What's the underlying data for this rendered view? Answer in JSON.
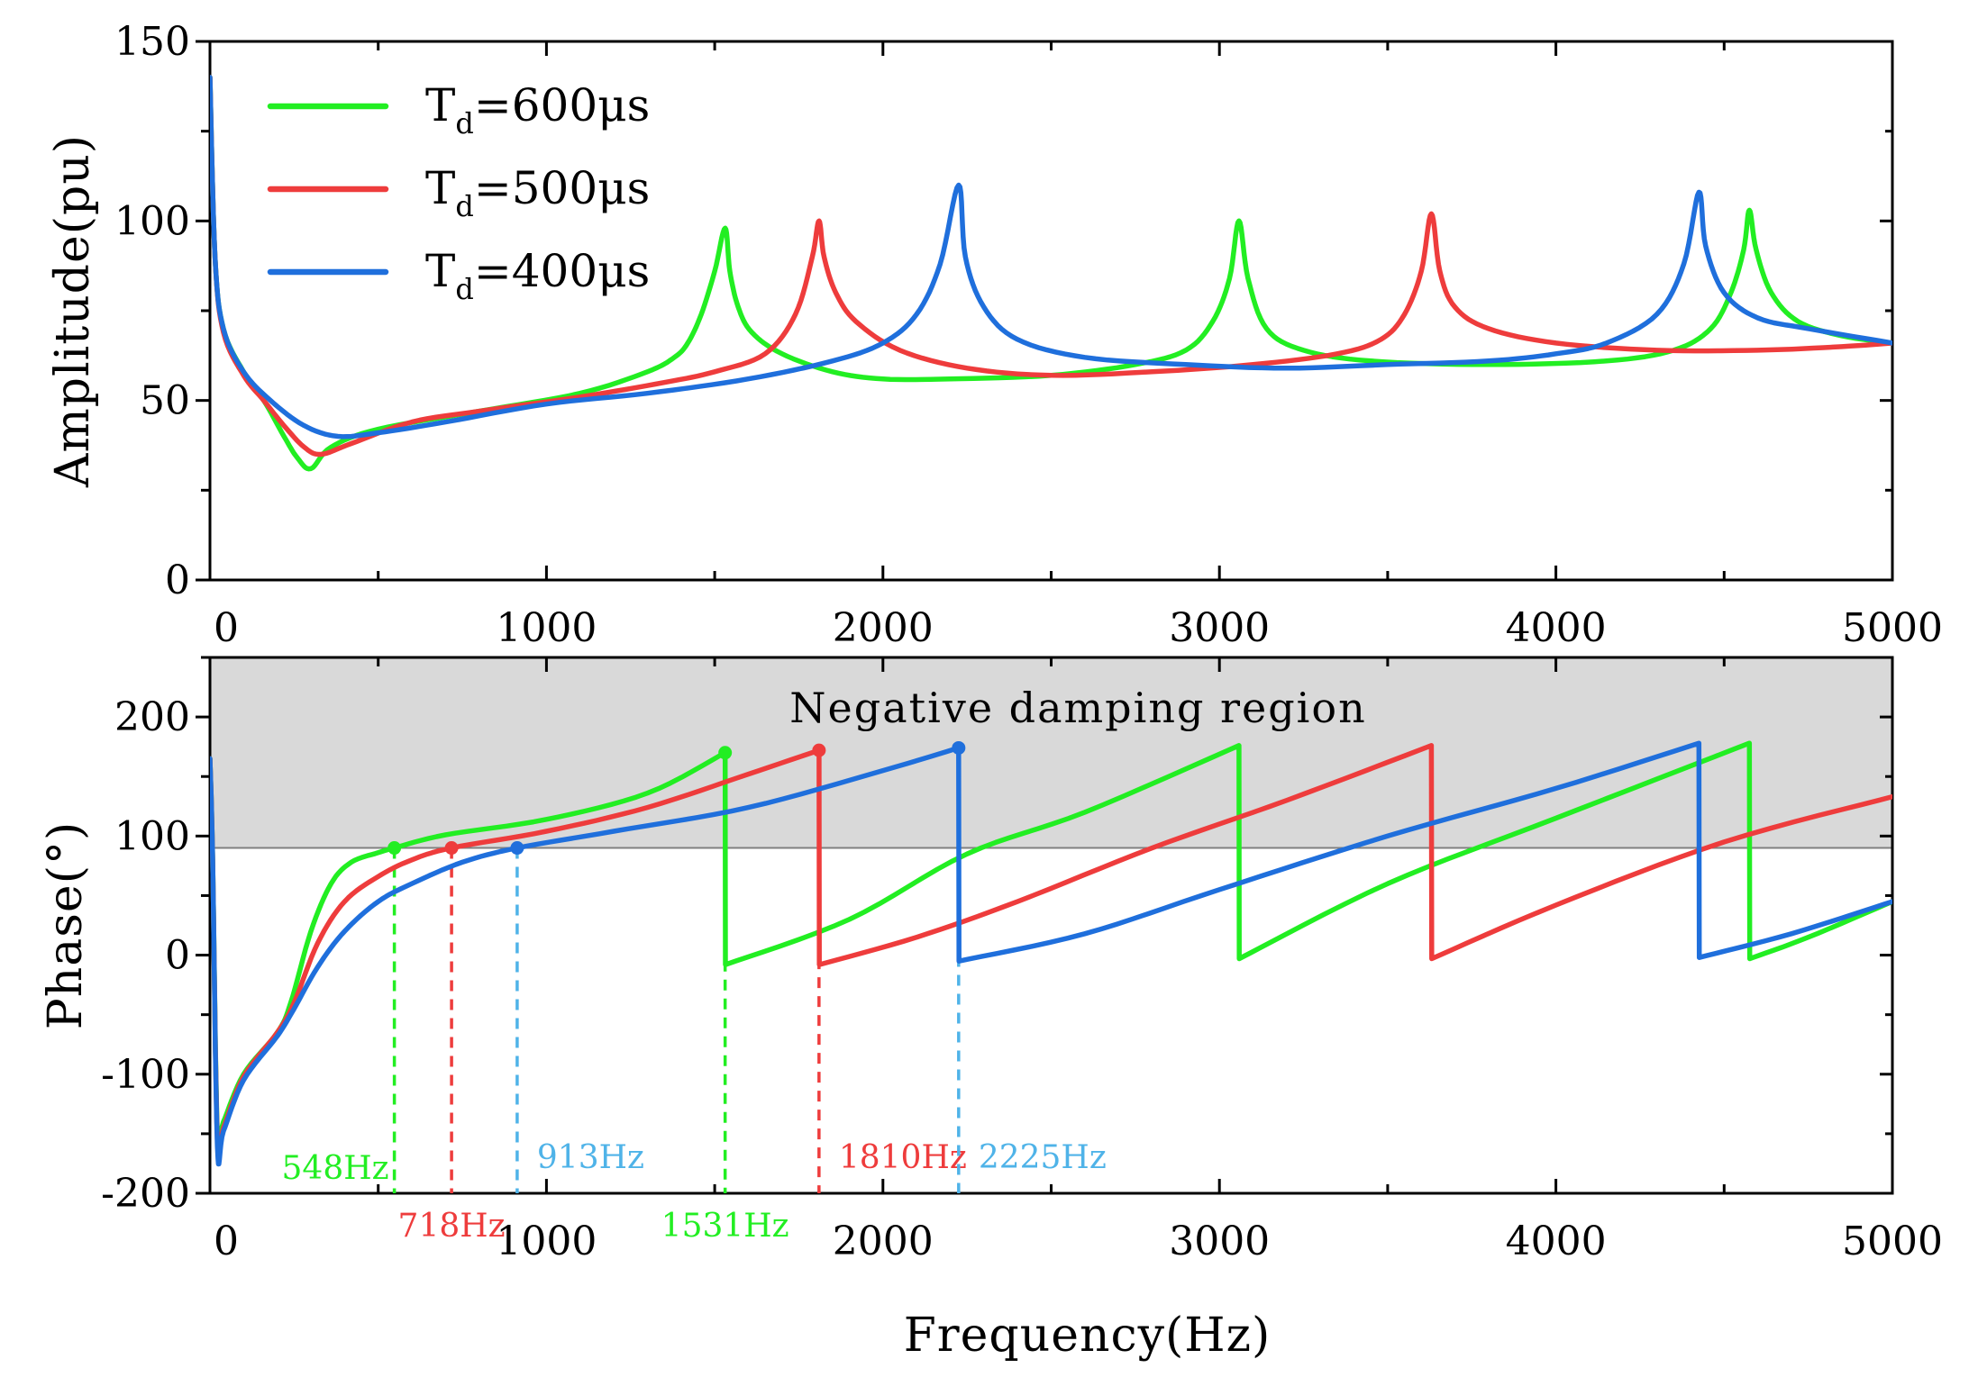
{
  "chart_data": [
    {
      "type": "line",
      "id": "amplitude",
      "xlabel": "",
      "ylabel": "Amplitude(pu)",
      "xlim": [
        0,
        5000
      ],
      "ylim": [
        0,
        150
      ],
      "xticks": [
        "0",
        "1000",
        "2000",
        "3000",
        "4000",
        "5000"
      ],
      "yticks": [
        "0",
        "50",
        "100",
        "150"
      ],
      "legend_position": "top-left",
      "legend": [
        {
          "main": "T",
          "sub": "d",
          "rest": "=600μs",
          "color": "#22ee22"
        },
        {
          "main": "T",
          "sub": "d",
          "rest": "=500μs",
          "color": "#ee3c3c"
        },
        {
          "main": "T",
          "sub": "d",
          "rest": "=400μs",
          "color": "#1f6fdc"
        }
      ],
      "series": [
        {
          "name": "Td=600μs",
          "color": "#22ee22",
          "base": [
            [
              0,
              140
            ],
            [
              15,
              90
            ],
            [
              40,
              70
            ],
            [
              100,
              58
            ],
            [
              160,
              50
            ],
            [
              220,
              40
            ],
            [
              260,
              34
            ],
            [
              300,
              31
            ],
            [
              360,
              37
            ],
            [
              500,
              42
            ],
            [
              800,
              47
            ],
            [
              1100,
              52
            ],
            [
              1300,
              58
            ],
            [
              1380,
              62
            ],
            [
              1420,
              66
            ],
            [
              1460,
              74
            ],
            [
              1500,
              86
            ],
            [
              1531,
              98
            ],
            [
              1545,
              86
            ],
            [
              1570,
              76
            ],
            [
              1610,
              69
            ],
            [
              1700,
              63
            ],
            [
              1850,
              58
            ],
            [
              2000,
              56
            ],
            [
              2200,
              56
            ],
            [
              2500,
              57
            ],
            [
              2750,
              60
            ],
            [
              2900,
              64
            ],
            [
              2980,
              72
            ],
            [
              3030,
              84
            ],
            [
              3058,
              100
            ],
            [
              3085,
              84
            ],
            [
              3140,
              70
            ],
            [
              3250,
              64
            ],
            [
              3450,
              61
            ],
            [
              3800,
              60
            ],
            [
              4150,
              61
            ],
            [
              4350,
              64
            ],
            [
              4460,
              70
            ],
            [
              4520,
              80
            ],
            [
              4558,
              92
            ],
            [
              4575,
              103
            ],
            [
              4595,
              92
            ],
            [
              4640,
              80
            ],
            [
              4720,
              72
            ],
            [
              4850,
              68
            ],
            [
              5000,
              66
            ]
          ]
        },
        {
          "name": "Td=500μs",
          "color": "#ee3c3c",
          "base": [
            [
              0,
              140
            ],
            [
              15,
              90
            ],
            [
              40,
              69
            ],
            [
              100,
              57
            ],
            [
              160,
              50
            ],
            [
              220,
              43
            ],
            [
              280,
              37
            ],
            [
              330,
              35
            ],
            [
              420,
              38
            ],
            [
              600,
              44
            ],
            [
              800,
              47
            ],
            [
              1100,
              51
            ],
            [
              1350,
              55
            ],
            [
              1500,
              58
            ],
            [
              1650,
              63
            ],
            [
              1740,
              74
            ],
            [
              1790,
              90
            ],
            [
              1810,
              100
            ],
            [
              1825,
              90
            ],
            [
              1860,
              80
            ],
            [
              1920,
              72
            ],
            [
              2050,
              64
            ],
            [
              2250,
              59
            ],
            [
              2500,
              57
            ],
            [
              2800,
              58
            ],
            [
              3100,
              60
            ],
            [
              3350,
              63
            ],
            [
              3480,
              67
            ],
            [
              3550,
              74
            ],
            [
              3600,
              86
            ],
            [
              3630,
              102
            ],
            [
              3655,
              86
            ],
            [
              3700,
              76
            ],
            [
              3800,
              70
            ],
            [
              4000,
              66
            ],
            [
              4300,
              64
            ],
            [
              4600,
              64
            ],
            [
              4850,
              65
            ],
            [
              5000,
              66
            ]
          ]
        },
        {
          "name": "Td=400μs",
          "color": "#1f6fdc",
          "base": [
            [
              0,
              140
            ],
            [
              15,
              90
            ],
            [
              40,
              70
            ],
            [
              100,
              58
            ],
            [
              180,
              50
            ],
            [
              280,
              43
            ],
            [
              380,
              40
            ],
            [
              500,
              41
            ],
            [
              700,
              44
            ],
            [
              1000,
              49
            ],
            [
              1300,
              52
            ],
            [
              1600,
              56
            ],
            [
              1850,
              61
            ],
            [
              2000,
              66
            ],
            [
              2100,
              74
            ],
            [
              2170,
              88
            ],
            [
              2225,
              110
            ],
            [
              2245,
              90
            ],
            [
              2300,
              76
            ],
            [
              2400,
              67
            ],
            [
              2600,
              62
            ],
            [
              2900,
              60
            ],
            [
              3200,
              59
            ],
            [
              3500,
              60
            ],
            [
              3800,
              61
            ],
            [
              4000,
              63
            ],
            [
              4150,
              66
            ],
            [
              4300,
              74
            ],
            [
              4380,
              88
            ],
            [
              4425,
              108
            ],
            [
              4445,
              93
            ],
            [
              4500,
              80
            ],
            [
              4600,
              73
            ],
            [
              4750,
              70
            ],
            [
              5000,
              66
            ]
          ]
        }
      ]
    },
    {
      "type": "line",
      "id": "phase",
      "xlabel": "Frequency(Hz)",
      "ylabel": "Phase(°)",
      "xlim": [
        0,
        5000
      ],
      "ylim": [
        -200,
        250
      ],
      "xticks": [
        "0",
        "1000",
        "2000",
        "3000",
        "4000",
        "5000"
      ],
      "yticks": [
        "-200",
        "-100",
        "0",
        "100",
        "200"
      ],
      "shaded_region": {
        "from": 90,
        "to": 250,
        "label": "Negative damping region",
        "color": "#d9d9d9"
      },
      "series": [
        {
          "name": "Td=600μs",
          "color": "#22ee22",
          "base": [
            [
              0,
              165
            ],
            [
              8,
              80
            ],
            [
              22,
              -150
            ],
            [
              40,
              -140
            ],
            [
              100,
              -100
            ],
            [
              200,
              -65
            ],
            [
              240,
              -40
            ],
            [
              300,
              20
            ],
            [
              360,
              60
            ],
            [
              420,
              78
            ],
            [
              500,
              86
            ],
            [
              548,
              90
            ],
            [
              700,
              101
            ],
            [
              1000,
              114
            ],
            [
              1300,
              136
            ],
            [
              1531,
              170
            ],
            [
              1532,
              -8
            ],
            [
              1900,
              30
            ],
            [
              2250,
              85
            ],
            [
              2600,
              120
            ],
            [
              3058,
              176
            ],
            [
              3059,
              -3
            ],
            [
              3500,
              60
            ],
            [
              4000,
              115
            ],
            [
              4575,
              178
            ],
            [
              4576,
              -3
            ],
            [
              4750,
              15
            ],
            [
              5000,
              45
            ]
          ]
        },
        {
          "name": "Td=500μs",
          "color": "#ee3c3c",
          "base": [
            [
              0,
              165
            ],
            [
              8,
              80
            ],
            [
              22,
              -155
            ],
            [
              40,
              -145
            ],
            [
              100,
              -102
            ],
            [
              200,
              -65
            ],
            [
              250,
              -40
            ],
            [
              320,
              10
            ],
            [
              400,
              45
            ],
            [
              500,
              66
            ],
            [
              600,
              80
            ],
            [
              718,
              90
            ],
            [
              1000,
              104
            ],
            [
              1300,
              124
            ],
            [
              1600,
              152
            ],
            [
              1810,
              172
            ],
            [
              1811,
              -8
            ],
            [
              2100,
              15
            ],
            [
              2400,
              45
            ],
            [
              2800,
              90
            ],
            [
              3200,
              130
            ],
            [
              3630,
              176
            ],
            [
              3631,
              -3
            ],
            [
              4000,
              42
            ],
            [
              4500,
              95
            ],
            [
              5000,
              133
            ]
          ]
        },
        {
          "name": "Td=400μs",
          "color": "#1f6fdc",
          "base": [
            [
              0,
              165
            ],
            [
              8,
              80
            ],
            [
              22,
              -160
            ],
            [
              40,
              -148
            ],
            [
              100,
              -105
            ],
            [
              200,
              -68
            ],
            [
              250,
              -45
            ],
            [
              320,
              -10
            ],
            [
              400,
              20
            ],
            [
              500,
              45
            ],
            [
              600,
              60
            ],
            [
              750,
              78
            ],
            [
              913,
              90
            ],
            [
              1200,
              104
            ],
            [
              1600,
              124
            ],
            [
              2000,
              155
            ],
            [
              2225,
              174
            ],
            [
              2226,
              -5
            ],
            [
              2600,
              18
            ],
            [
              3000,
              55
            ],
            [
              3500,
              100
            ],
            [
              4000,
              140
            ],
            [
              4425,
              178
            ],
            [
              4426,
              -2
            ],
            [
              4700,
              18
            ],
            [
              5000,
              45
            ]
          ]
        }
      ],
      "markers": [
        {
          "x": 548,
          "label": "548Hz",
          "color": "#22ee22",
          "label_pos": "low-left"
        },
        {
          "x": 718,
          "label": "718Hz",
          "color": "#ee3c3c",
          "label_pos": "below"
        },
        {
          "x": 913,
          "label": "913Hz",
          "color": "#4fb3e8",
          "label_pos": "low-right"
        },
        {
          "x": 1531,
          "label": "1531Hz",
          "color": "#22ee22",
          "label_pos": "below"
        },
        {
          "x": 1810,
          "label": "1810Hz",
          "color": "#ee3c3c",
          "label_pos": "low-right"
        },
        {
          "x": 2225,
          "label": "2225Hz",
          "color": "#4fb3e8",
          "label_pos": "low-right"
        }
      ],
      "marker_points": [
        {
          "x": 548,
          "y": 90,
          "color": "#22ee22"
        },
        {
          "x": 718,
          "y": 90,
          "color": "#ee3c3c"
        },
        {
          "x": 913,
          "y": 90,
          "color": "#1f6fdc"
        },
        {
          "x": 1531,
          "y": 170,
          "color": "#22ee22"
        },
        {
          "x": 1810,
          "y": 172,
          "color": "#ee3c3c"
        },
        {
          "x": 2225,
          "y": 174,
          "color": "#1f6fdc"
        }
      ]
    }
  ]
}
